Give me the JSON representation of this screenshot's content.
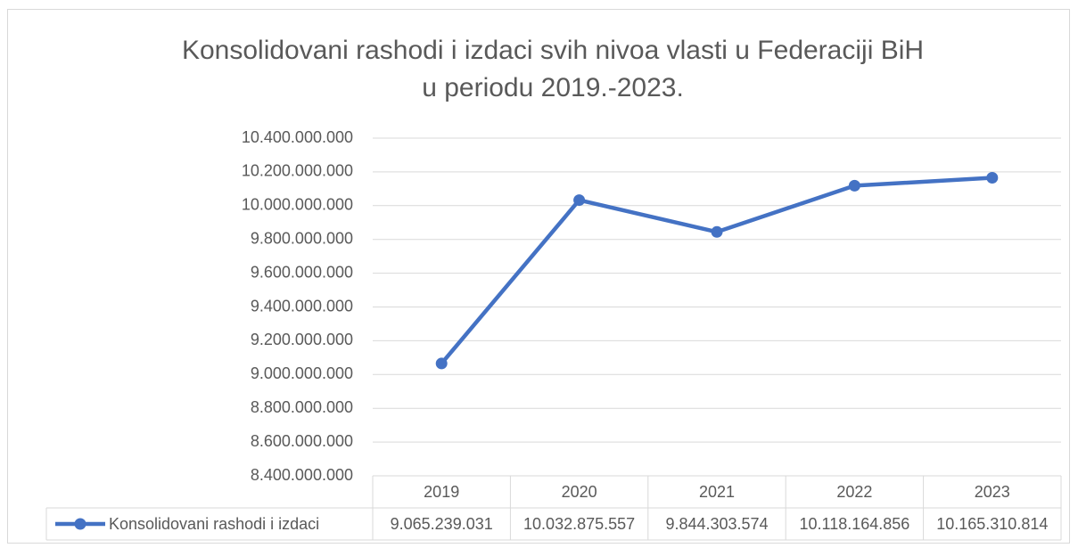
{
  "chart_data": {
    "type": "line",
    "title": [
      "Konsolidovani rashodi i izdaci svih nivoa vlasti u Federaciji BiH",
      "u periodu 2019.-2023."
    ],
    "categories": [
      "2019",
      "2020",
      "2021",
      "2022",
      "2023"
    ],
    "series": [
      {
        "name": "Konsolidovani rashodi i izdaci",
        "color": "#4472c4",
        "values": [
          9065239031,
          10032875557,
          9844303574,
          10118164856,
          10165310814
        ],
        "value_labels": [
          "9.065.239.031",
          "10.032.875.557",
          "9.844.303.574",
          "10.118.164.856",
          "10.165.310.814"
        ]
      }
    ],
    "ylim": [
      8400000000,
      10400000000
    ],
    "yticks": [
      {
        "value": 8400000000,
        "label": "8.400.000.000"
      },
      {
        "value": 8600000000,
        "label": "8.600.000.000"
      },
      {
        "value": 8800000000,
        "label": "8.800.000.000"
      },
      {
        "value": 9000000000,
        "label": "9.000.000.000"
      },
      {
        "value": 9200000000,
        "label": "9.200.000.000"
      },
      {
        "value": 9400000000,
        "label": "9.400.000.000"
      },
      {
        "value": 9600000000,
        "label": "9.600.000.000"
      },
      {
        "value": 9800000000,
        "label": "9.800.000.000"
      },
      {
        "value": 10000000000,
        "label": "10.000.000.000"
      },
      {
        "value": 10200000000,
        "label": "10.200.000.000"
      },
      {
        "value": 10400000000,
        "label": "10.400.000.000"
      }
    ],
    "grid": true,
    "data_table": true
  }
}
